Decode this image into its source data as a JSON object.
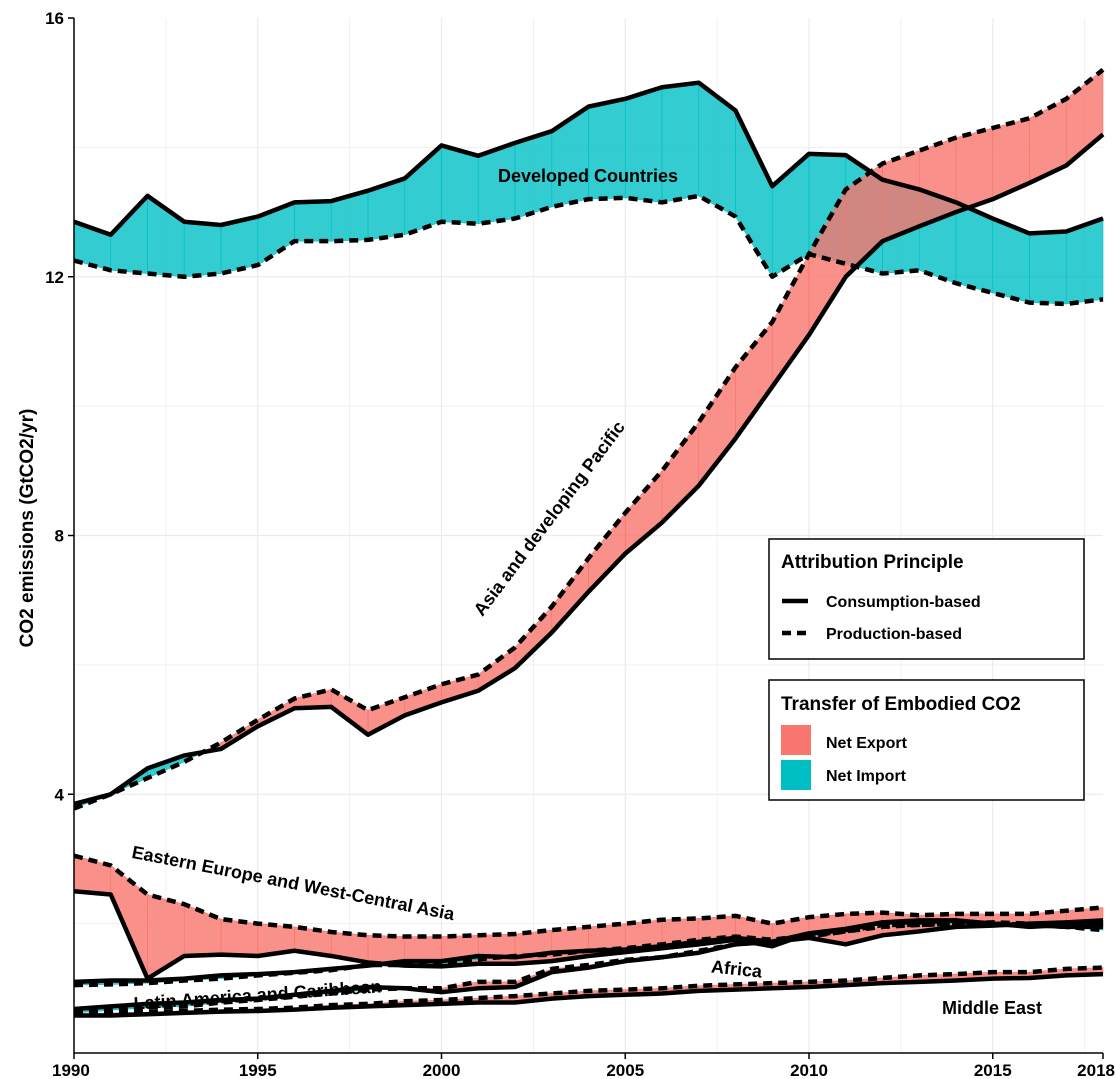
{
  "chart_data": {
    "type": "area",
    "ylabel": "CO2 emissions (GtCO2/yr)",
    "xlabel": "",
    "title": "",
    "xlim": [
      1990,
      2018
    ],
    "ylim": [
      0,
      16
    ],
    "x_ticks": [
      "1990",
      "1995",
      "2000",
      "2005",
      "2010",
      "2015",
      "2018"
    ],
    "y_ticks": [
      "4",
      "8",
      "12",
      "16"
    ],
    "grid": true,
    "years": [
      1990,
      1991,
      1992,
      1993,
      1994,
      1995,
      1996,
      1997,
      1998,
      1999,
      2000,
      2001,
      2002,
      2003,
      2004,
      2005,
      2006,
      2007,
      2008,
      2009,
      2010,
      2011,
      2012,
      2013,
      2014,
      2015,
      2016,
      2017,
      2018
    ],
    "colors": {
      "net_export": "#F8766D",
      "net_import": "#00BFC4",
      "line": "#000000"
    },
    "series": [
      {
        "name": "Developed Countries",
        "consumption": [
          12.85,
          12.65,
          13.25,
          12.85,
          12.8,
          12.93,
          13.15,
          13.17,
          13.33,
          13.52,
          14.03,
          13.87,
          14.07,
          14.25,
          14.63,
          14.75,
          14.93,
          15.0,
          14.57,
          13.4,
          13.9,
          13.88,
          13.5,
          13.35,
          13.15,
          12.9,
          12.67,
          12.7,
          12.9
        ],
        "production": [
          12.25,
          12.1,
          12.05,
          12.0,
          12.05,
          12.18,
          12.55,
          12.55,
          12.57,
          12.65,
          12.85,
          12.82,
          12.9,
          13.08,
          13.2,
          13.22,
          13.15,
          13.25,
          12.93,
          12.0,
          12.35,
          12.2,
          12.05,
          12.1,
          11.9,
          11.75,
          11.6,
          11.58,
          11.65
        ]
      },
      {
        "name": "Asia and developing Pacific",
        "consumption": [
          3.85,
          4.0,
          4.4,
          4.6,
          4.7,
          5.05,
          5.33,
          5.35,
          4.92,
          5.22,
          5.42,
          5.6,
          5.95,
          6.5,
          7.13,
          7.72,
          8.2,
          8.77,
          9.5,
          10.3,
          11.1,
          12.0,
          12.55,
          12.78,
          13.0,
          13.2,
          13.45,
          13.72,
          14.2
        ],
        "production": [
          3.78,
          4.0,
          4.25,
          4.5,
          4.8,
          5.15,
          5.48,
          5.62,
          5.3,
          5.5,
          5.7,
          5.85,
          6.27,
          6.9,
          7.65,
          8.35,
          9.0,
          9.75,
          10.6,
          11.3,
          12.35,
          13.35,
          13.75,
          13.95,
          14.15,
          14.3,
          14.45,
          14.75,
          15.2
        ]
      },
      {
        "name": "Eastern Europe and West-Central Asia",
        "consumption": [
          2.5,
          2.45,
          1.15,
          1.5,
          1.52,
          1.5,
          1.58,
          1.5,
          1.4,
          1.35,
          1.34,
          1.38,
          1.38,
          1.42,
          1.5,
          1.56,
          1.62,
          1.68,
          1.75,
          1.65,
          1.85,
          1.9,
          2.02,
          2.05,
          2.05,
          2.0,
          1.95,
          1.98,
          2.0
        ],
        "production": [
          3.05,
          2.9,
          2.45,
          2.3,
          2.07,
          2.0,
          1.95,
          1.87,
          1.82,
          1.8,
          1.8,
          1.82,
          1.84,
          1.9,
          1.95,
          2.0,
          2.06,
          2.08,
          2.12,
          2.0,
          2.1,
          2.15,
          2.17,
          2.13,
          2.15,
          2.15,
          2.15,
          2.2,
          2.25
        ]
      },
      {
        "name": "Africa",
        "consumption": [
          1.1,
          1.12,
          1.12,
          1.15,
          1.2,
          1.22,
          1.25,
          1.3,
          1.35,
          1.42,
          1.42,
          1.5,
          1.48,
          1.55,
          1.58,
          1.6,
          1.65,
          1.72,
          1.78,
          1.72,
          1.78,
          1.68,
          1.82,
          1.88,
          1.95,
          1.97,
          2.0,
          2.02,
          2.05
        ],
        "production": [
          1.05,
          1.06,
          1.08,
          1.12,
          1.15,
          1.2,
          1.24,
          1.28,
          1.36,
          1.36,
          1.38,
          1.45,
          1.5,
          1.52,
          1.58,
          1.62,
          1.68,
          1.75,
          1.8,
          1.75,
          1.82,
          1.88,
          1.95,
          1.98,
          2.0,
          2.02,
          2.0,
          1.95,
          1.9
        ]
      },
      {
        "name": "Latin America and Caribbean",
        "consumption": [
          0.68,
          0.72,
          0.76,
          0.78,
          0.82,
          0.84,
          0.9,
          0.96,
          1.02,
          1.0,
          0.94,
          1.0,
          1.02,
          1.25,
          1.32,
          1.42,
          1.48,
          1.55,
          1.68,
          1.72,
          1.85,
          1.92,
          2.02,
          2.02,
          2.05,
          1.98,
          1.98,
          1.95,
          1.95
        ],
        "production": [
          0.62,
          0.66,
          0.7,
          0.72,
          0.78,
          0.82,
          0.87,
          0.92,
          0.98,
          1.0,
          1.0,
          1.1,
          1.1,
          1.3,
          1.36,
          1.44,
          1.48,
          1.58,
          1.68,
          1.72,
          1.8,
          1.88,
          1.98,
          1.98,
          2.0,
          2.0,
          1.98,
          1.95,
          2.0
        ]
      },
      {
        "name": "Middle East",
        "consumption": [
          0.58,
          0.58,
          0.6,
          0.62,
          0.64,
          0.65,
          0.67,
          0.7,
          0.72,
          0.74,
          0.76,
          0.78,
          0.78,
          0.84,
          0.88,
          0.9,
          0.92,
          0.96,
          0.98,
          1.0,
          1.02,
          1.05,
          1.08,
          1.1,
          1.12,
          1.15,
          1.16,
          1.2,
          1.22
        ],
        "production": [
          0.6,
          0.62,
          0.63,
          0.65,
          0.67,
          0.68,
          0.7,
          0.74,
          0.76,
          0.8,
          0.82,
          0.85,
          0.88,
          0.92,
          0.96,
          0.98,
          1.0,
          1.04,
          1.06,
          1.08,
          1.1,
          1.12,
          1.16,
          1.2,
          1.22,
          1.25,
          1.25,
          1.3,
          1.32
        ]
      }
    ],
    "region_labels": [
      "Developed Countries",
      "Asia and developing Pacific",
      "Eastern Europe and West-Central Asia",
      "Africa",
      "Latin America and Caribbean",
      "Middle East"
    ],
    "legend": {
      "placement": "right",
      "attribution_title": "Attribution Principle",
      "attribution_items": [
        "Consumption-based",
        "Production-based"
      ],
      "transfer_title": "Transfer of Embodied CO2",
      "transfer_items": [
        "Net Export",
        "Net Import"
      ]
    }
  }
}
